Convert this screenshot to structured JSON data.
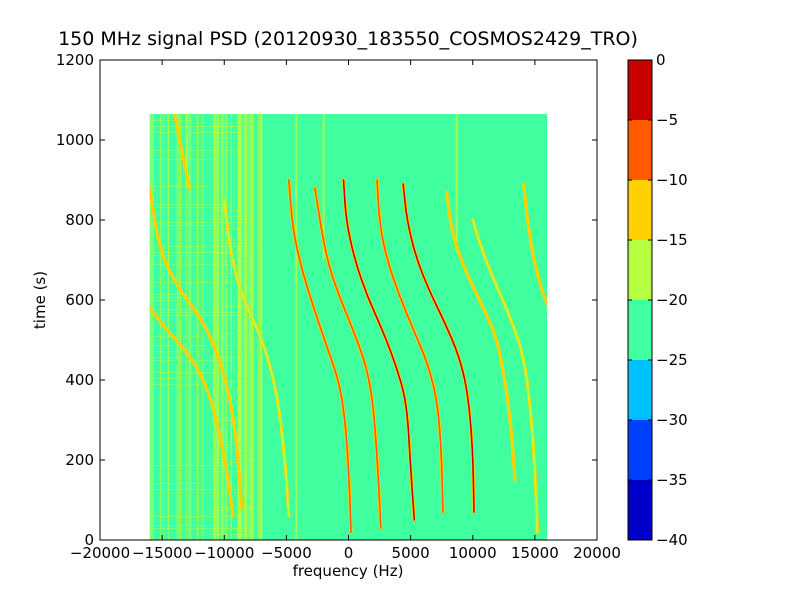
{
  "chart_data": {
    "type": "heatmap",
    "title": "150 MHz signal PSD (20120930_183550_COSMOS2429_TRO)",
    "xlabel": "frequency (Hz)",
    "ylabel": "time (s)",
    "xlim": [
      -20000,
      20000
    ],
    "ylim": [
      0,
      1200
    ],
    "xticks": [
      "−20000",
      "−15000",
      "−10000",
      "−5000",
      "0",
      "5000",
      "10000",
      "15000",
      "20000"
    ],
    "yticks": [
      "0",
      "200",
      "400",
      "600",
      "800",
      "1000",
      "1200"
    ],
    "data_extent": {
      "x": [
        -16000,
        16000
      ],
      "y": [
        0,
        1065
      ]
    },
    "background_level": -22.5,
    "colorbar": {
      "ticks": [
        "0",
        "−5",
        "−10",
        "−15",
        "−20",
        "−25",
        "−30",
        "−35",
        "−40"
      ],
      "bands": [
        {
          "range": [
            -40,
            -35
          ],
          "color": "#0000c8"
        },
        {
          "range": [
            -35,
            -30
          ],
          "color": "#0040ff"
        },
        {
          "range": [
            -30,
            -25
          ],
          "color": "#00c0ff"
        },
        {
          "range": [
            -25,
            -20
          ],
          "color": "#40ff9f"
        },
        {
          "range": [
            -20,
            -15
          ],
          "color": "#b6ff40"
        },
        {
          "range": [
            -15,
            -10
          ],
          "color": "#ffd000"
        },
        {
          "range": [
            -10,
            -5
          ],
          "color": "#ff5a00"
        },
        {
          "range": [
            -5,
            0
          ],
          "color": "#c80000"
        }
      ]
    },
    "noise_regions": [
      {
        "x": [
          -16000,
          -7000
        ],
        "y": [
          0,
          1065
        ],
        "level": -19
      },
      {
        "x": [
          -11000,
          -7000
        ],
        "y": [
          0,
          1065
        ],
        "level": -17
      }
    ],
    "vertical_lines": [
      {
        "x": -13000,
        "y": [
          880,
          1065
        ],
        "level": -17
      },
      {
        "x": -8800,
        "y": [
          0,
          1065
        ],
        "level": -16
      },
      {
        "x": -8300,
        "y": [
          0,
          1065
        ],
        "level": -17
      },
      {
        "x": -7800,
        "y": [
          0,
          1065
        ],
        "level": -17
      },
      {
        "x": -4200,
        "y": [
          0,
          1065
        ],
        "level": -19
      },
      {
        "x": -2000,
        "y": [
          700,
          1065
        ],
        "level": -19
      },
      {
        "x": 8700,
        "y": [
          720,
          1065
        ],
        "level": -20
      }
    ],
    "signal_tracks": [
      {
        "points": [
          [
            -14000,
            1065
          ],
          [
            -13400,
            970
          ],
          [
            -12800,
            880
          ]
        ],
        "level": -14
      },
      {
        "points": [
          [
            -16000,
            880
          ],
          [
            -15200,
            720
          ],
          [
            -13500,
            620
          ],
          [
            -11500,
            540
          ],
          [
            -9800,
            400
          ],
          [
            -9000,
            250
          ],
          [
            -8600,
            80
          ]
        ],
        "level": -15
      },
      {
        "points": [
          [
            -16000,
            580
          ],
          [
            -14500,
            520
          ],
          [
            -13000,
            470
          ],
          [
            -11600,
            400
          ],
          [
            -10600,
            300
          ],
          [
            -9700,
            160
          ],
          [
            -9300,
            60
          ]
        ],
        "level": -14
      },
      {
        "points": [
          [
            -10000,
            850
          ],
          [
            -9500,
            720
          ],
          [
            -8700,
            620
          ],
          [
            -7500,
            540
          ],
          [
            -6500,
            460
          ],
          [
            -5600,
            340
          ],
          [
            -5000,
            160
          ],
          [
            -4800,
            60
          ]
        ],
        "level": -16
      },
      {
        "points": [
          [
            -4800,
            900
          ],
          [
            -4500,
            780
          ],
          [
            -3800,
            680
          ],
          [
            -2800,
            580
          ],
          [
            -1700,
            480
          ],
          [
            -700,
            390
          ],
          [
            -200,
            280
          ],
          [
            100,
            120
          ],
          [
            200,
            20
          ]
        ],
        "level": -6
      },
      {
        "points": [
          [
            -2700,
            880
          ],
          [
            -2200,
            780
          ],
          [
            -1700,
            700
          ],
          [
            -1000,
            630
          ],
          [
            300,
            530
          ],
          [
            1400,
            440
          ],
          [
            2000,
            340
          ],
          [
            2400,
            160
          ],
          [
            2600,
            30
          ]
        ],
        "level": -10
      },
      {
        "points": [
          [
            -400,
            900
          ],
          [
            -200,
            800
          ],
          [
            500,
            700
          ],
          [
            1500,
            610
          ],
          [
            2800,
            520
          ],
          [
            3900,
            430
          ],
          [
            4700,
            340
          ],
          [
            5000,
            180
          ],
          [
            5300,
            50
          ]
        ],
        "level": -3
      },
      {
        "points": [
          [
            2300,
            900
          ],
          [
            2500,
            790
          ],
          [
            3100,
            700
          ],
          [
            4100,
            610
          ],
          [
            5300,
            520
          ],
          [
            6400,
            440
          ],
          [
            7200,
            340
          ],
          [
            7500,
            200
          ],
          [
            7600,
            70
          ]
        ],
        "level": -8
      },
      {
        "points": [
          [
            4400,
            890
          ],
          [
            4700,
            800
          ],
          [
            5400,
            710
          ],
          [
            6400,
            630
          ],
          [
            7800,
            540
          ],
          [
            8900,
            460
          ],
          [
            9600,
            370
          ],
          [
            10000,
            230
          ],
          [
            10100,
            70
          ]
        ],
        "level": -5
      },
      {
        "points": [
          [
            7900,
            870
          ],
          [
            8300,
            770
          ],
          [
            9300,
            680
          ],
          [
            10700,
            590
          ],
          [
            11900,
            510
          ],
          [
            12600,
            400
          ],
          [
            13100,
            280
          ],
          [
            13400,
            150
          ]
        ],
        "level": -14
      },
      {
        "points": [
          [
            10000,
            800
          ],
          [
            11000,
            700
          ],
          [
            13000,
            560
          ],
          [
            14200,
            450
          ],
          [
            14800,
            280
          ],
          [
            15100,
            120
          ],
          [
            15200,
            20
          ]
        ],
        "level": -17
      },
      {
        "points": [
          [
            14100,
            890
          ],
          [
            14400,
            800
          ],
          [
            14900,
            700
          ],
          [
            15600,
            620
          ],
          [
            16000,
            590
          ]
        ],
        "level": -13
      }
    ],
    "grid": false,
    "legend": "none"
  }
}
